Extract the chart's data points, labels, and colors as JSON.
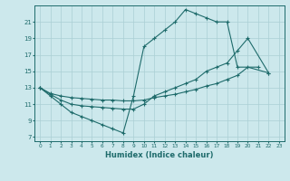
{
  "xlabel": "Humidex (Indice chaleur)",
  "bg_color": "#cce8ec",
  "grid_color": "#aacfd4",
  "line_color": "#1e6b6b",
  "xlim": [
    -0.5,
    23.5
  ],
  "ylim": [
    6.5,
    23.0
  ],
  "yticks": [
    7,
    9,
    11,
    13,
    15,
    17,
    19,
    21
  ],
  "xticks": [
    0,
    1,
    2,
    3,
    4,
    5,
    6,
    7,
    8,
    9,
    10,
    11,
    12,
    13,
    14,
    15,
    16,
    17,
    18,
    19,
    20,
    21,
    22,
    23
  ],
  "line1_x": [
    0,
    1,
    2,
    3,
    4,
    5,
    6,
    7,
    8,
    9,
    10,
    11,
    12,
    13,
    14,
    15,
    16,
    17,
    18,
    19,
    21
  ],
  "line1_y": [
    13,
    12,
    11,
    10,
    9.5,
    9.0,
    8.5,
    8.0,
    7.5,
    12,
    18.0,
    19.0,
    20.0,
    21.0,
    22.5,
    22.0,
    21.5,
    21.0,
    21.0,
    15.5,
    15.5
  ],
  "line2_x": [
    0,
    1,
    2,
    3,
    4,
    5,
    6,
    7,
    8,
    9,
    10,
    11,
    12,
    13,
    14,
    15,
    16,
    17,
    18,
    19,
    20,
    22
  ],
  "line2_y": [
    13,
    12.2,
    11.5,
    11.0,
    10.8,
    10.7,
    10.6,
    10.5,
    10.4,
    10.4,
    11.0,
    12.0,
    12.5,
    13.0,
    13.5,
    14.0,
    15.0,
    15.5,
    16.0,
    17.5,
    19.0,
    14.8
  ],
  "line3_x": [
    0,
    1,
    2,
    3,
    4,
    5,
    6,
    7,
    8,
    9,
    10,
    11,
    12,
    13,
    14,
    15,
    16,
    17,
    18,
    19,
    20,
    22
  ],
  "line3_y": [
    13,
    12.3,
    12.0,
    11.8,
    11.7,
    11.6,
    11.5,
    11.5,
    11.4,
    11.4,
    11.5,
    11.8,
    12.0,
    12.2,
    12.5,
    12.8,
    13.2,
    13.5,
    14.0,
    14.5,
    15.5,
    14.8
  ]
}
